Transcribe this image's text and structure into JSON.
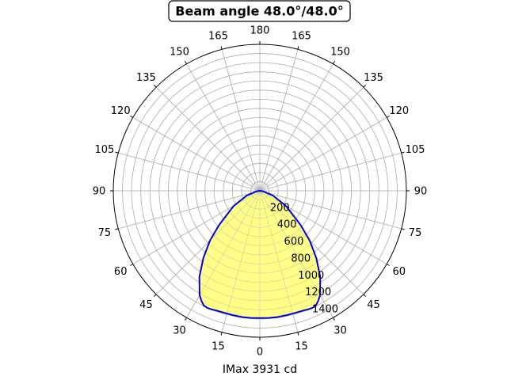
{
  "chart_data": {
    "type": "polar",
    "title": "Beam angle 48.0°/48.0°",
    "xlabel": "IMax 3931 cd",
    "angle_tick_labels": [
      "0",
      "15",
      "30",
      "45",
      "60",
      "75",
      "90",
      "105",
      "120",
      "135",
      "150",
      "165",
      "180",
      "165",
      "150",
      "135",
      "120",
      "105",
      "90",
      "75",
      "60",
      "45",
      "30",
      "15"
    ],
    "radial_ticks": [
      200,
      400,
      600,
      800,
      1000,
      1200,
      1400
    ],
    "rlim": [
      0,
      1600
    ],
    "grid": true,
    "fill_color": "#ffff88",
    "line_color": "#0000dd",
    "series": [
      {
        "angles_deg": [
          0,
          4,
          8,
          12,
          16,
          20,
          22,
          24,
          26,
          28,
          30,
          35,
          40,
          45,
          50,
          60,
          70,
          80,
          90
        ],
        "values": [
          1390,
          1392,
          1393,
          1390,
          1388,
          1392,
          1398,
          1402,
          1395,
          1360,
          1315,
          1150,
          960,
          770,
          580,
          330,
          150,
          40,
          0
        ]
      }
    ]
  }
}
